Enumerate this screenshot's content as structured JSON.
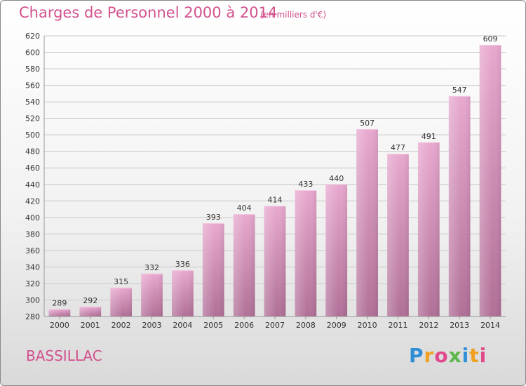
{
  "chart_data": {
    "type": "bar",
    "title": "Charges de Personnel 2000 à 2014",
    "subtitle": "(en milliers d'€)",
    "categories": [
      "2000",
      "2001",
      "2002",
      "2003",
      "2004",
      "2005",
      "2006",
      "2007",
      "2008",
      "2009",
      "2010",
      "2011",
      "2012",
      "2013",
      "2014"
    ],
    "values": [
      289,
      292,
      315,
      332,
      336,
      393,
      404,
      414,
      433,
      440,
      507,
      477,
      491,
      547,
      609
    ],
    "ylim": [
      280,
      620
    ],
    "yticks": [
      280,
      300,
      320,
      340,
      360,
      380,
      400,
      420,
      440,
      460,
      480,
      500,
      520,
      540,
      560,
      580,
      600,
      620
    ],
    "grid": true,
    "bar_color": "#d98bb8"
  },
  "commune": "BASSILLAC",
  "logo": {
    "letters": [
      "P",
      "r",
      "o",
      "x",
      "i",
      "t",
      "i"
    ],
    "colors": [
      "#2f8fd6",
      "#f0a020",
      "#e04a8a",
      "#5cb84a",
      "#2f8fd6",
      "#f0a020",
      "#e04a8a"
    ]
  }
}
